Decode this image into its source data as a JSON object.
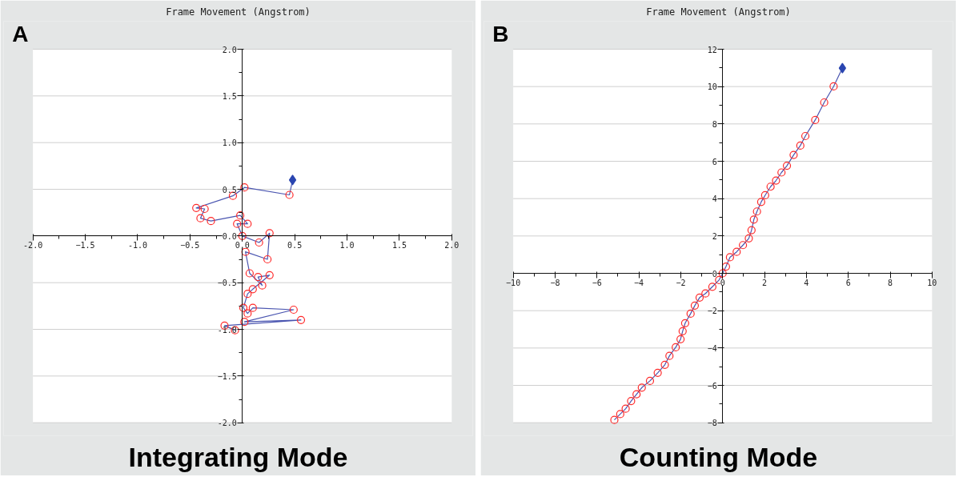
{
  "chart_data": [
    {
      "type": "line",
      "title": "Frame Movement (Angstrom)",
      "annotations": [
        "A",
        "Integrating Mode"
      ],
      "xlim": [
        -2,
        2
      ],
      "ylim": [
        -2,
        2
      ],
      "xticks": [
        {
          "value": -2,
          "label": "-2.0"
        },
        -1.5,
        {
          "value": -1,
          "label": "-1.0"
        },
        -0.5,
        {
          "value": 0,
          "label": "0.0"
        },
        0.5,
        {
          "value": 1,
          "label": "1.0"
        },
        1.5,
        {
          "value": 2,
          "label": "2.0"
        }
      ],
      "yticks": [
        {
          "value": -2,
          "label": "-2.0"
        },
        -1.5,
        {
          "value": -1,
          "label": "-1.0"
        },
        -0.5,
        {
          "value": 0,
          "label": "0.0"
        },
        0.5,
        {
          "value": 1,
          "label": "1.0"
        },
        1.5,
        {
          "value": 2,
          "label": "2.0"
        }
      ],
      "grid": "y",
      "series": [
        {
          "type": "line",
          "color": "#4a55b0",
          "marker": "none",
          "x": [
            -0.07,
            -0.17,
            0.56,
            0.02,
            0.49,
            0.1,
            0.05,
            0.01,
            0.05,
            0.1,
            0.26,
            0.15,
            0.19,
            0.07,
            0.03,
            0.24,
            0.26,
            0.16,
            0.0,
            -0.05,
            0.05,
            -0.02,
            -0.3,
            -0.4,
            -0.36,
            -0.44,
            -0.09,
            0.02,
            0.45,
            0.48
          ],
          "values": [
            -1.01,
            -0.96,
            -0.9,
            -0.92,
            -0.79,
            -0.77,
            -0.83,
            -0.77,
            -0.62,
            -0.57,
            -0.42,
            -0.44,
            -0.53,
            -0.4,
            -0.17,
            -0.25,
            0.03,
            -0.07,
            0.0,
            0.13,
            0.13,
            0.22,
            0.16,
            0.19,
            0.29,
            0.3,
            0.43,
            0.52,
            0.44,
            0.6
          ]
        },
        {
          "type": "scatter",
          "color": "#ff2a2a",
          "marker": "circle",
          "x": [
            -0.07,
            -0.17,
            0.56,
            0.02,
            0.49,
            0.1,
            0.05,
            0.01,
            0.05,
            0.1,
            0.26,
            0.15,
            0.19,
            0.07,
            0.03,
            0.24,
            0.26,
            0.16,
            0.0,
            -0.05,
            0.05,
            -0.02,
            -0.3,
            -0.4,
            -0.36,
            -0.44,
            -0.09,
            0.02,
            0.45
          ],
          "values": [
            -1.01,
            -0.96,
            -0.9,
            -0.92,
            -0.79,
            -0.77,
            -0.83,
            -0.77,
            -0.62,
            -0.57,
            -0.42,
            -0.44,
            -0.53,
            -0.4,
            -0.17,
            -0.25,
            0.03,
            -0.07,
            0.0,
            0.13,
            0.13,
            0.22,
            0.16,
            0.19,
            0.29,
            0.3,
            0.43,
            0.52,
            0.44
          ]
        },
        {
          "type": "scatter",
          "color": "#2a45b0",
          "marker": "diamond",
          "x": [
            0.48
          ],
          "values": [
            0.6
          ]
        }
      ]
    },
    {
      "type": "line",
      "title": "Frame Movement (Angstrom)",
      "annotations": [
        "B",
        "Counting Mode"
      ],
      "xlim": [
        -10,
        10
      ],
      "ylim": [
        -8,
        12
      ],
      "xticks": [
        -10,
        -8,
        -6,
        -4,
        -2,
        0,
        2,
        4,
        6,
        8,
        10
      ],
      "yticks": [
        -8,
        -6,
        -4,
        -2,
        0,
        2,
        4,
        6,
        8,
        10,
        12
      ],
      "grid": "y",
      "series": [
        {
          "type": "line",
          "color": "#4a55b0",
          "marker": "none",
          "x": [
            -5.17,
            -4.89,
            -4.63,
            -4.37,
            -4.11,
            -3.86,
            -3.47,
            -3.1,
            -2.76,
            -2.54,
            -2.24,
            -2.01,
            -1.91,
            -1.79,
            -1.53,
            -1.33,
            -1.1,
            -0.82,
            -0.49,
            -0.17,
            0,
            0.16,
            0.35,
            0.67,
            0.97,
            1.25,
            1.38,
            1.49,
            1.64,
            1.84,
            2.03,
            2.29,
            2.55,
            2.81,
            3.07,
            3.39,
            3.71,
            3.95,
            4.42,
            4.85,
            5.3,
            5.72
          ],
          "values": [
            -7.85,
            -7.54,
            -7.25,
            -6.84,
            -6.48,
            -6.12,
            -5.76,
            -5.33,
            -4.9,
            -4.42,
            -3.96,
            -3.53,
            -3.1,
            -2.67,
            -2.16,
            -1.73,
            -1.3,
            -1.08,
            -0.72,
            -0.36,
            0,
            0.36,
            0.86,
            1.15,
            1.51,
            1.87,
            2.31,
            2.88,
            3.31,
            3.82,
            4.18,
            4.64,
            4.97,
            5.4,
            5.76,
            6.34,
            6.84,
            7.35,
            8.21,
            9.15,
            10.01,
            10.99
          ]
        },
        {
          "type": "scatter",
          "color": "#ff2a2a",
          "marker": "circle",
          "x": [
            -5.17,
            -4.89,
            -4.63,
            -4.37,
            -4.11,
            -3.86,
            -3.47,
            -3.1,
            -2.76,
            -2.54,
            -2.24,
            -2.01,
            -1.91,
            -1.79,
            -1.53,
            -1.33,
            -1.1,
            -0.82,
            -0.49,
            -0.17,
            0,
            0.16,
            0.35,
            0.67,
            0.97,
            1.25,
            1.38,
            1.49,
            1.64,
            1.84,
            2.03,
            2.29,
            2.55,
            2.81,
            3.07,
            3.39,
            3.71,
            3.95,
            4.42,
            4.85,
            5.3
          ],
          "values": [
            -7.85,
            -7.54,
            -7.25,
            -6.84,
            -6.48,
            -6.12,
            -5.76,
            -5.33,
            -4.9,
            -4.42,
            -3.96,
            -3.53,
            -3.1,
            -2.67,
            -2.16,
            -1.73,
            -1.3,
            -1.08,
            -0.72,
            -0.36,
            0,
            0.36,
            0.86,
            1.15,
            1.51,
            1.87,
            2.31,
            2.88,
            3.31,
            3.82,
            4.18,
            4.64,
            4.97,
            5.4,
            5.76,
            6.34,
            6.84,
            7.35,
            8.21,
            9.15,
            10.01
          ]
        },
        {
          "type": "scatter",
          "color": "#2a45b0",
          "marker": "diamond",
          "x": [
            5.72
          ],
          "values": [
            10.99
          ]
        }
      ]
    }
  ]
}
